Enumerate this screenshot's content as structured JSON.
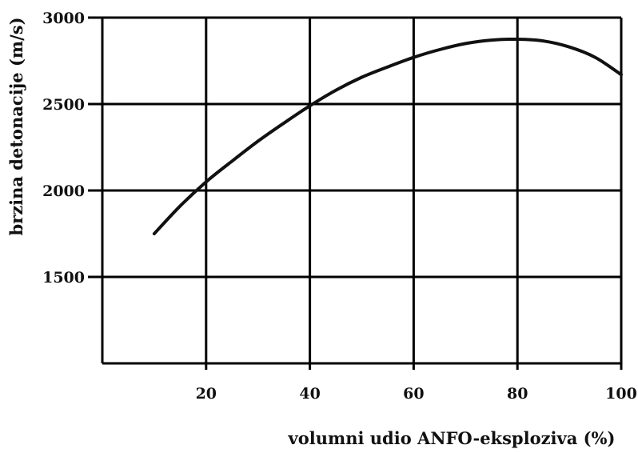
{
  "chart_data": {
    "type": "line",
    "title": "",
    "xlabel": "volumni udio ANFO-eksploziva (%)",
    "ylabel": "brzina detonacije (m/s)",
    "xlim": [
      0,
      100
    ],
    "ylim": [
      1000,
      3000
    ],
    "x_ticks": [
      20,
      40,
      60,
      80,
      100
    ],
    "x_tick_labels": [
      "20",
      "40",
      "60",
      "80",
      "100"
    ],
    "y_ticks": [
      1500,
      2000,
      2500,
      3000
    ],
    "y_tick_labels": [
      "1500",
      "2000",
      "2500",
      "3000"
    ],
    "grid": true,
    "legend": "none",
    "series": [
      {
        "x": [
          10,
          15,
          20,
          25,
          30,
          35,
          40,
          45,
          50,
          55,
          60,
          65,
          70,
          75,
          80,
          85,
          90,
          95,
          100
        ],
        "y": [
          1750,
          1910,
          2050,
          2170,
          2285,
          2390,
          2490,
          2580,
          2655,
          2715,
          2770,
          2815,
          2850,
          2870,
          2875,
          2865,
          2830,
          2770,
          2670
        ]
      }
    ],
    "colors": {
      "line": "#111111",
      "grid": "#000000",
      "background": "#ffffff"
    }
  }
}
